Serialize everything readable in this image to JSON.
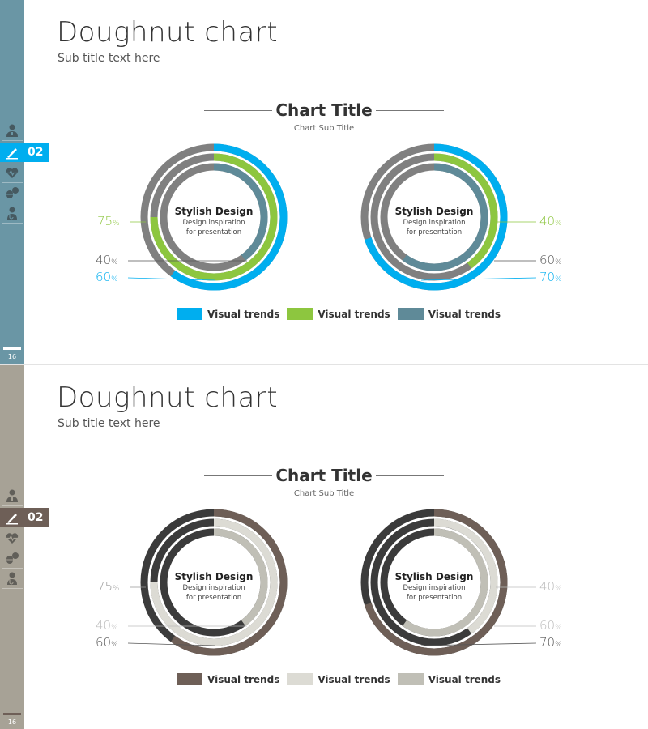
{
  "slides": [
    {
      "title": "Doughnut chart",
      "subtitle": "Sub title text here",
      "chart_title": "Chart Title",
      "chart_subtitle": "Chart Sub Title",
      "section_number": "02",
      "page_number": "16",
      "sidebar_color": "#6a96a5",
      "active_color": "#00aeef",
      "icons": [
        "doctor-icon",
        "scalpel-icon",
        "heartbeat-icon",
        "pills-icon",
        "stethoscope-icon"
      ],
      "legend": [
        {
          "label": "Visual trends",
          "color": "#00aeef"
        },
        {
          "label": "Visual trends",
          "color": "#8dc63f"
        },
        {
          "label": "Visual trends",
          "color": "#5f8a98"
        }
      ],
      "donuts": [
        {
          "center_title": "Stylish Design",
          "center_line1": "Design inspiration",
          "center_line2": "for presentation",
          "rings": [
            {
              "value": 60,
              "color": "#00aeef",
              "bg": "#808080",
              "pct": "60"
            },
            {
              "value": 75,
              "color": "#8dc63f",
              "bg": "#808080",
              "pct": "75"
            },
            {
              "value": 40,
              "color": "#5f8a98",
              "bg": "#808080",
              "pct": "40"
            }
          ],
          "label_colors": [
            "#00aeef",
            "#8dc63f",
            "#555555"
          ]
        },
        {
          "center_title": "Stylish Design",
          "center_line1": "Design inspiration",
          "center_line2": "for presentation",
          "rings": [
            {
              "value": 70,
              "color": "#00aeef",
              "bg": "#808080",
              "pct": "70"
            },
            {
              "value": 40,
              "color": "#8dc63f",
              "bg": "#808080",
              "pct": "40"
            },
            {
              "value": 60,
              "color": "#5f8a98",
              "bg": "#808080",
              "pct": "60"
            }
          ],
          "label_colors": [
            "#00aeef",
            "#8dc63f",
            "#555555"
          ]
        }
      ]
    },
    {
      "title": "Doughnut chart",
      "subtitle": "Sub title text here",
      "chart_title": "Chart Title",
      "chart_subtitle": "Chart Sub Title",
      "section_number": "02",
      "page_number": "16",
      "sidebar_color": "#a7a296",
      "active_color": "#6e5f57",
      "icons": [
        "doctor-icon",
        "scalpel-icon",
        "heartbeat-icon",
        "pills-icon",
        "stethoscope-icon"
      ],
      "legend": [
        {
          "label": "Visual trends",
          "color": "#6e5f57"
        },
        {
          "label": "Visual trends",
          "color": "#dcdbd4"
        },
        {
          "label": "Visual trends",
          "color": "#c0bfb6"
        }
      ],
      "donuts": [
        {
          "center_title": "Stylish Design",
          "center_line1": "Design inspiration",
          "center_line2": "for presentation",
          "rings": [
            {
              "value": 60,
              "color": "#6e5f57",
              "bg": "#3b3b3b",
              "pct": "60"
            },
            {
              "value": 75,
              "color": "#dcdbd4",
              "bg": "#3b3b3b",
              "pct": "75"
            },
            {
              "value": 40,
              "color": "#c0bfb6",
              "bg": "#3b3b3b",
              "pct": "40"
            }
          ],
          "label_colors": [
            "#555555",
            "#999999",
            "#bbbbbb"
          ]
        },
        {
          "center_title": "Stylish Design",
          "center_line1": "Design inspiration",
          "center_line2": "for presentation",
          "rings": [
            {
              "value": 70,
              "color": "#6e5f57",
              "bg": "#3b3b3b",
              "pct": "70"
            },
            {
              "value": 40,
              "color": "#dcdbd4",
              "bg": "#3b3b3b",
              "pct": "40"
            },
            {
              "value": 60,
              "color": "#c0bfb6",
              "bg": "#3b3b3b",
              "pct": "60"
            }
          ],
          "label_colors": [
            "#555555",
            "#bbbbbb",
            "#bbbbbb"
          ]
        }
      ]
    }
  ],
  "chart_data": [
    {
      "type": "doughnut",
      "title": "Chart Title",
      "subtitle": "Chart Sub Title",
      "series": [
        {
          "name": "Visual trends",
          "values": [
            60,
            70
          ]
        },
        {
          "name": "Visual trends",
          "values": [
            75,
            40
          ]
        },
        {
          "name": "Visual trends",
          "values": [
            40,
            60
          ]
        }
      ],
      "center_label": "Stylish Design"
    },
    {
      "type": "doughnut",
      "title": "Chart Title",
      "subtitle": "Chart Sub Title",
      "series": [
        {
          "name": "Visual trends",
          "values": [
            60,
            70
          ]
        },
        {
          "name": "Visual trends",
          "values": [
            75,
            40
          ]
        },
        {
          "name": "Visual trends",
          "values": [
            40,
            60
          ]
        }
      ],
      "center_label": "Stylish Design"
    }
  ]
}
